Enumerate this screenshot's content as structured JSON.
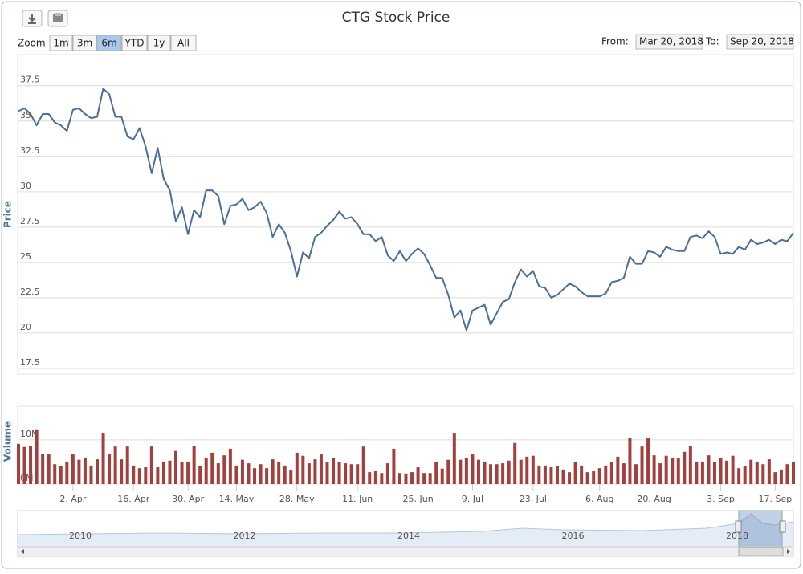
{
  "ui": {
    "zoom_label": "Zoom",
    "range_buttons": [
      "1m",
      "3m",
      "6m",
      "YTD",
      "1y",
      "All"
    ],
    "selected_range": "6m",
    "from_label": "From:",
    "from_value": "Mar 20, 2018",
    "to_label": "To:",
    "to_value": "Sep 20, 2018"
  },
  "navigator": {
    "labels": [
      "2010",
      "2012",
      "2014",
      "2016",
      "2018"
    ]
  },
  "chart_data": [
    {
      "type": "line",
      "title": "CTG Stock Price",
      "y_label": "Price",
      "color": "#4a6f98",
      "grid": true,
      "ylim": [
        17.1,
        39.7
      ],
      "yticks": [
        17.5,
        20,
        22.5,
        25,
        27.5,
        30,
        32.5,
        35,
        37.5
      ],
      "values": [
        35.7,
        35.9,
        35.5,
        34.7,
        35.5,
        35.5,
        34.9,
        34.7,
        34.3,
        35.8,
        35.9,
        35.5,
        35.2,
        35.3,
        37.3,
        36.9,
        35.3,
        35.3,
        33.9,
        33.7,
        34.5,
        33.2,
        31.3,
        33.1,
        30.9,
        30.1,
        27.9,
        28.9,
        27.0,
        28.7,
        28.2,
        30.1,
        30.1,
        29.7,
        27.7,
        29.0,
        29.1,
        29.5,
        28.7,
        28.9,
        29.3,
        28.5,
        26.8,
        27.7,
        27.1,
        25.8,
        24.0,
        25.7,
        25.3,
        26.8,
        27.1,
        27.6,
        28.0,
        28.6,
        28.1,
        28.2,
        27.7,
        27.0,
        27.0,
        26.5,
        26.8,
        25.5,
        25.1,
        25.8,
        25.1,
        25.6,
        26.0,
        25.6,
        24.8,
        23.9,
        23.9,
        22.7,
        21.1,
        21.6,
        20.2,
        21.6,
        21.8,
        22.0,
        20.6,
        21.4,
        22.2,
        22.4,
        23.6,
        24.5,
        24.0,
        24.4,
        23.3,
        23.2,
        22.5,
        22.7,
        23.1,
        23.5,
        23.3,
        22.9,
        22.6,
        22.6,
        22.6,
        22.8,
        23.6,
        23.7,
        23.9,
        25.4,
        24.9,
        24.9,
        25.8,
        25.7,
        25.4,
        26.1,
        25.9,
        25.8,
        25.8,
        26.8,
        26.9,
        26.7,
        27.2,
        26.8,
        25.6,
        25.7,
        25.6,
        26.1,
        25.9,
        26.6,
        26.3,
        26.4,
        26.6,
        26.3,
        26.6,
        26.5,
        27.1
      ]
    },
    {
      "type": "bar",
      "y_label": "Volume",
      "color": "#a3403d",
      "grid": true,
      "ylim": [
        0,
        17.6
      ],
      "yticks": [
        {
          "value": 0,
          "label": "0M"
        },
        {
          "value": 10,
          "label": "10M"
        }
      ],
      "categories": [
        null,
        null,
        null,
        null,
        null,
        null,
        null,
        null,
        null,
        "2. Apr",
        null,
        null,
        null,
        null,
        null,
        null,
        null,
        null,
        null,
        "16. Apr",
        null,
        null,
        null,
        null,
        null,
        null,
        null,
        null,
        "30. Apr",
        null,
        null,
        null,
        null,
        null,
        null,
        null,
        "14. May",
        null,
        null,
        null,
        null,
        null,
        null,
        null,
        null,
        null,
        "28. May",
        null,
        null,
        null,
        null,
        null,
        null,
        null,
        null,
        null,
        "11. Jun",
        null,
        null,
        null,
        null,
        null,
        null,
        null,
        null,
        null,
        "25. Jun",
        null,
        null,
        null,
        null,
        null,
        null,
        null,
        null,
        "9. Jul",
        null,
        null,
        null,
        null,
        null,
        null,
        null,
        null,
        null,
        "23. Jul",
        null,
        null,
        null,
        null,
        null,
        null,
        null,
        null,
        null,
        null,
        "6. Aug",
        null,
        null,
        null,
        null,
        null,
        null,
        null,
        null,
        "20. Aug",
        null,
        null,
        null,
        null,
        null,
        null,
        null,
        null,
        null,
        null,
        "3. Sep",
        null,
        null,
        null,
        null,
        null,
        null,
        null,
        null,
        "17. Sep",
        null,
        null,
        null
      ],
      "values": [
        9.1,
        8.4,
        8.7,
        12.2,
        6.9,
        6.7,
        4.5,
        4.0,
        5.1,
        6.7,
        5.5,
        6.0,
        4.2,
        5.6,
        11.6,
        6.7,
        8.5,
        5.6,
        8.5,
        4.2,
        3.6,
        3.8,
        8.5,
        3.8,
        5.1,
        5.3,
        7.5,
        4.9,
        5.1,
        8.7,
        4.0,
        6.0,
        7.1,
        4.7,
        6.5,
        8.0,
        4.2,
        5.5,
        4.7,
        3.6,
        4.5,
        3.6,
        5.6,
        4.9,
        4.2,
        3.1,
        7.1,
        6.4,
        4.7,
        5.6,
        6.7,
        4.9,
        6.0,
        4.9,
        4.7,
        4.5,
        4.5,
        8.5,
        2.7,
        2.9,
        2.5,
        4.7,
        8.0,
        2.5,
        2.4,
        2.7,
        3.8,
        2.5,
        2.5,
        5.1,
        3.5,
        5.5,
        11.6,
        5.5,
        6.0,
        6.7,
        5.5,
        5.1,
        4.5,
        4.5,
        4.7,
        5.3,
        9.3,
        5.5,
        6.2,
        6.4,
        4.2,
        4.2,
        3.8,
        4.0,
        3.3,
        2.7,
        4.9,
        4.2,
        2.7,
        2.9,
        3.6,
        4.2,
        4.9,
        6.2,
        4.7,
        10.4,
        4.5,
        8.5,
        10.4,
        6.5,
        4.7,
        6.4,
        6.0,
        5.8,
        7.3,
        8.7,
        5.1,
        5.1,
        6.5,
        4.9,
        6.0,
        5.3,
        6.4,
        3.6,
        4.0,
        5.5,
        4.9,
        4.5,
        5.6,
        2.7,
        3.3,
        4.5,
        5.1
      ]
    }
  ]
}
